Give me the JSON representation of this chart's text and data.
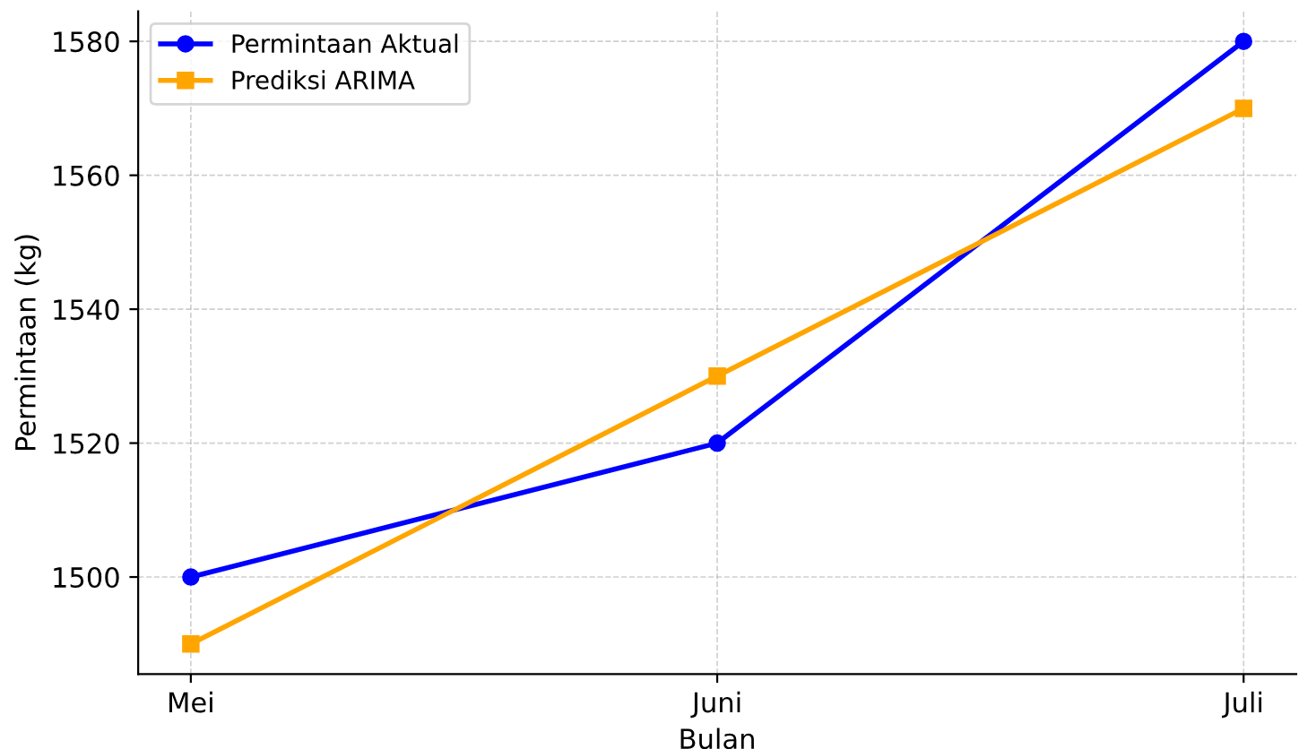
{
  "chart_data": {
    "type": "line",
    "xlabel": "Bulan",
    "ylabel": "Permintaan (kg)",
    "categories": [
      "Mei",
      "Juni",
      "Juli"
    ],
    "series": [
      {
        "name": "Permintaan Aktual",
        "color": "#0000ff",
        "values": [
          1500,
          1520,
          1580
        ],
        "marker": "circle"
      },
      {
        "name": "Prediksi ARIMA",
        "color": "#ffa500",
        "values": [
          1490,
          1530,
          1570
        ],
        "marker": "square"
      }
    ],
    "ylim": [
      1485.5,
      1584.5
    ],
    "yticks": [
      1500,
      1520,
      1540,
      1560,
      1580
    ],
    "grid": true,
    "legend": "top left",
    "line_style": "solid"
  }
}
